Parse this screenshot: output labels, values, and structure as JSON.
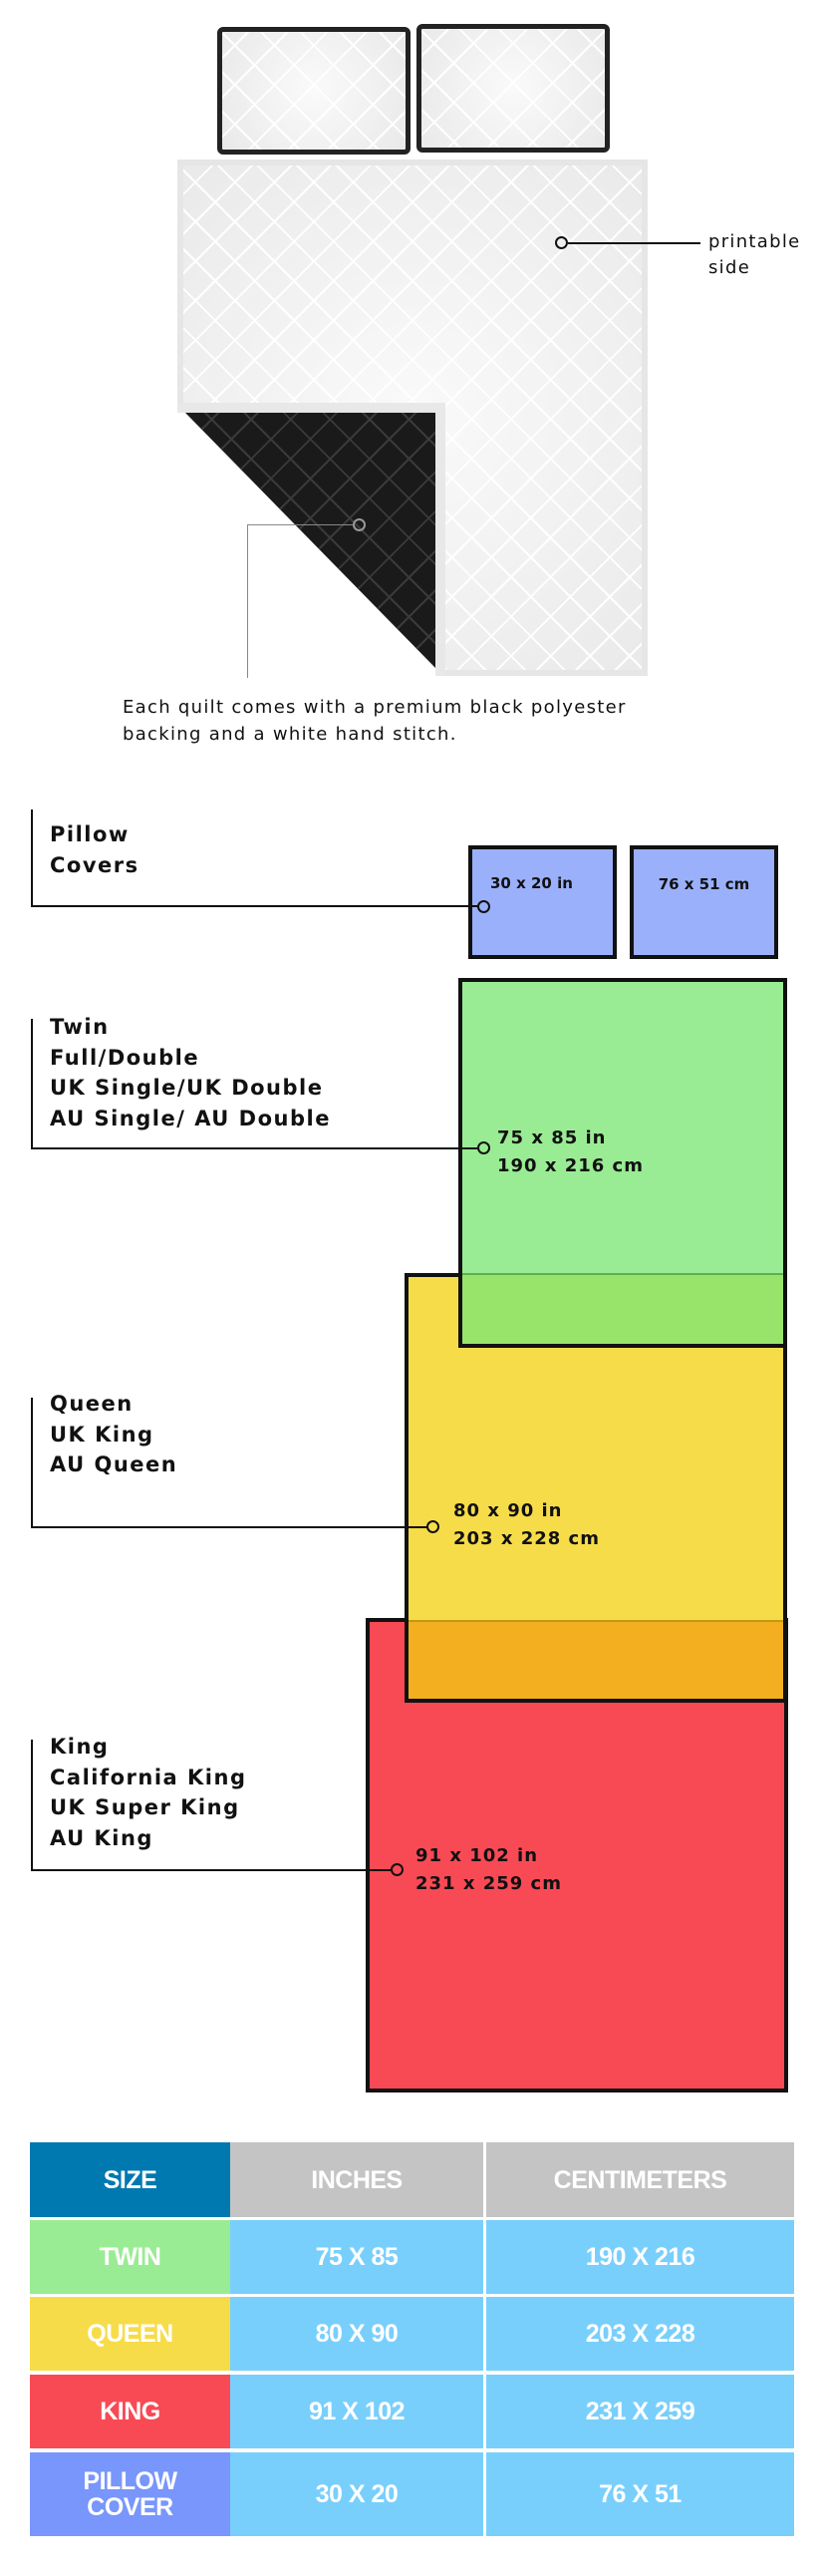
{
  "illustration": {
    "printable_label": [
      "printable",
      "side"
    ],
    "caption": [
      "Each quilt comes with a premium black polyester",
      "backing and a white hand stitch."
    ]
  },
  "size_groups": [
    {
      "id": "pillow",
      "labels": [
        "Pillow",
        "Covers"
      ],
      "dims": [
        "30 x 20 in",
        "76 x 51 cm"
      ],
      "color": "#9ab0fb"
    },
    {
      "id": "twin",
      "labels": [
        "Twin",
        "Full/Double",
        "UK Single/UK Double",
        "AU Single/ AU Double"
      ],
      "dims": [
        "75 x 85 in",
        "190 x 216 cm"
      ],
      "color": "#99ec93"
    },
    {
      "id": "queen",
      "labels": [
        "Queen",
        "UK King",
        "AU Queen"
      ],
      "dims": [
        "80 x 90 in",
        "203 x 228 cm"
      ],
      "color": "#f7dc4a"
    },
    {
      "id": "king",
      "labels": [
        "King",
        "California King",
        "UK Super King",
        "AU King"
      ],
      "dims": [
        "91 x 102 in",
        "231 x 259 cm"
      ],
      "color": "#f84a55"
    }
  ],
  "overlap_colors": {
    "twin_queen": "#98e46a",
    "queen_king": "#f3af20"
  },
  "table": {
    "headers": [
      "SIZE",
      "INCHES",
      "CENTIMETERS"
    ],
    "header_colors": [
      "#0079b0",
      "#c4c4c4",
      "#c4c4c4"
    ],
    "cell_color": "#79cffc",
    "rows": [
      {
        "size": "TWIN",
        "inches": "75 X 85",
        "cm": "190 X 216",
        "color": "#99ec93"
      },
      {
        "size": "QUEEN",
        "inches": "80 X 90",
        "cm": "203 X 228",
        "color": "#f7dc4a"
      },
      {
        "size": "KING",
        "inches": "91 X 102",
        "cm": "231 X 259",
        "color": "#f84a55"
      },
      {
        "size": "PILLOW COVER",
        "inches": "30 X 20",
        "cm": "76 X 51",
        "color": "#7896fb"
      }
    ]
  }
}
